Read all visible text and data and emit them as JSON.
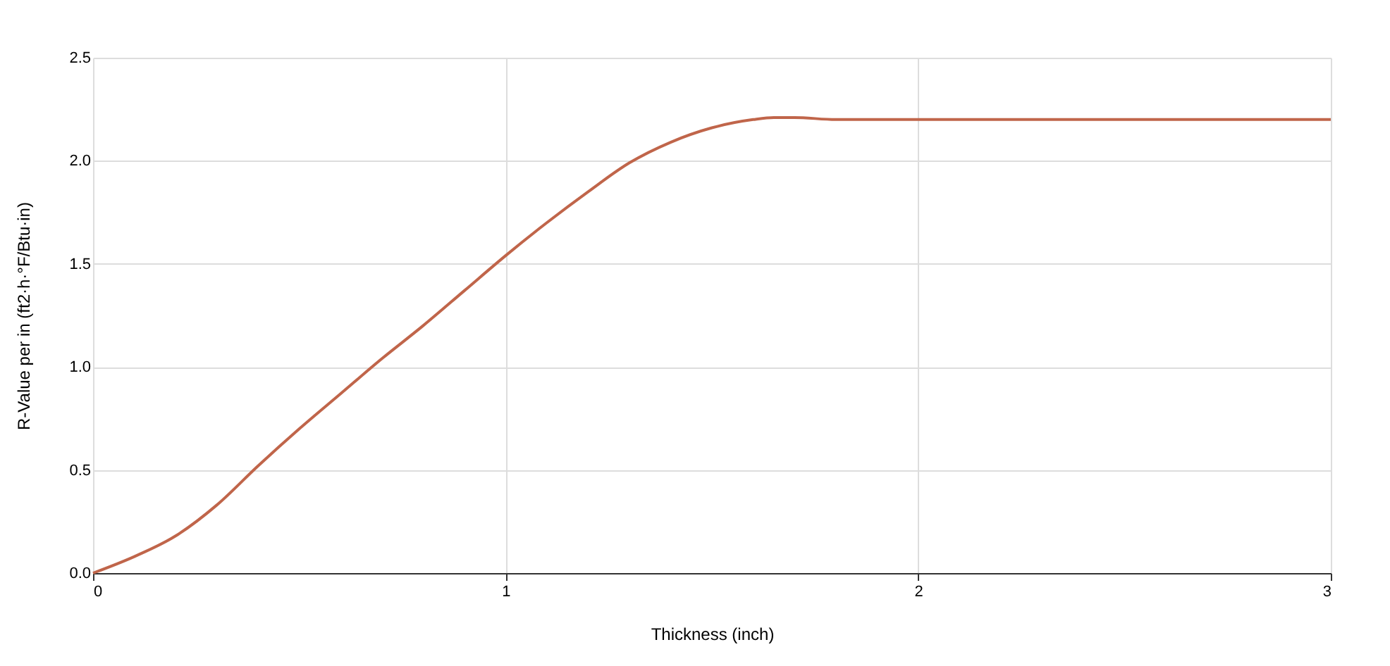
{
  "chart_data": {
    "type": "line",
    "xlabel": "Thickness (inch)",
    "ylabel": "R-Value per in (ft2·h·°F/Btu·in)",
    "x": [
      0,
      0.1,
      0.2,
      0.3,
      0.4,
      0.5,
      0.6,
      0.7,
      0.8,
      0.9,
      1.0,
      1.1,
      1.2,
      1.3,
      1.4,
      1.5,
      1.6,
      1.65,
      1.7,
      1.8,
      2.0,
      2.5,
      3.0
    ],
    "series": [
      {
        "color": "#c0654a",
        "values": [
          0,
          0.08,
          0.18,
          0.33,
          0.52,
          0.7,
          0.87,
          1.04,
          1.2,
          1.37,
          1.54,
          1.7,
          1.85,
          1.99,
          2.09,
          2.16,
          2.2,
          2.21,
          2.21,
          2.2,
          2.2,
          2.2,
          2.2
        ]
      }
    ],
    "xlim": [
      0,
      3
    ],
    "xticks": [
      0,
      1,
      2,
      3
    ],
    "ylim": [
      0,
      2.5
    ],
    "yticks": [
      {
        "value": 0,
        "label": "0.0"
      },
      0.5,
      {
        "value": 1,
        "label": "1.0"
      },
      1.5,
      {
        "value": 2,
        "label": "2.0"
      },
      2.5
    ],
    "grid": true,
    "legend": false,
    "marker": "none",
    "line_style": "solid"
  }
}
